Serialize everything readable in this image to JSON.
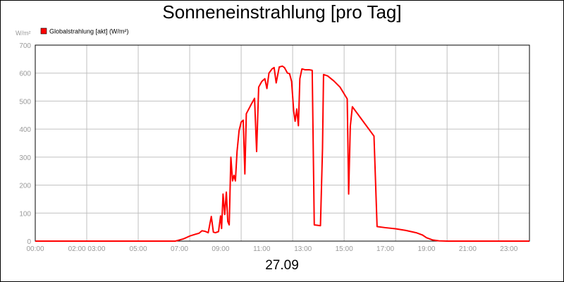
{
  "title": "Sonneneinstrahlung [pro Tag]",
  "date_label": "27.09",
  "colors": {
    "series": "#ff0000",
    "grid": "#c0c0c0",
    "tick_text": "#999999"
  },
  "chart_data": {
    "type": "line",
    "title": "Sonneneinstrahlung [pro Tag]",
    "xlabel": "",
    "ylabel": "W/m²",
    "ylim": [
      0,
      700
    ],
    "xlim": [
      0,
      24
    ],
    "grid": true,
    "legend_position": "top-left",
    "y_ticks": [
      0,
      100,
      200,
      300,
      400,
      500,
      600,
      700
    ],
    "x_ticks": [
      {
        "h": 0,
        "label": "00:00"
      },
      {
        "h": 2.5,
        "label": "02:00 03:00"
      },
      {
        "h": 5,
        "label": "05:00"
      },
      {
        "h": 7,
        "label": "07:00"
      },
      {
        "h": 9,
        "label": "09:00"
      },
      {
        "h": 11,
        "label": "11:00"
      },
      {
        "h": 13,
        "label": "13:00"
      },
      {
        "h": 15,
        "label": "15:00"
      },
      {
        "h": 17,
        "label": "17:00"
      },
      {
        "h": 19,
        "label": "19:00"
      },
      {
        "h": 21,
        "label": "21:00"
      },
      {
        "h": 23,
        "label": "23:00"
      }
    ],
    "series": [
      {
        "name": "Globalstrahlung [akt] (W/m²)",
        "color": "#ff0000",
        "points": [
          [
            0,
            0
          ],
          [
            6.8,
            0
          ],
          [
            7.2,
            8
          ],
          [
            7.5,
            18
          ],
          [
            7.8,
            25
          ],
          [
            7.95,
            28
          ],
          [
            8.1,
            37
          ],
          [
            8.25,
            35
          ],
          [
            8.4,
            30
          ],
          [
            8.55,
            88
          ],
          [
            8.65,
            32
          ],
          [
            8.75,
            30
          ],
          [
            8.9,
            34
          ],
          [
            9.0,
            90
          ],
          [
            9.05,
            45
          ],
          [
            9.12,
            168
          ],
          [
            9.2,
            95
          ],
          [
            9.28,
            175
          ],
          [
            9.35,
            70
          ],
          [
            9.42,
            58
          ],
          [
            9.5,
            300
          ],
          [
            9.58,
            215
          ],
          [
            9.65,
            235
          ],
          [
            9.72,
            215
          ],
          [
            9.8,
            320
          ],
          [
            9.9,
            395
          ],
          [
            10.0,
            425
          ],
          [
            10.1,
            432
          ],
          [
            10.18,
            240
          ],
          [
            10.25,
            455
          ],
          [
            10.5,
            490
          ],
          [
            10.65,
            510
          ],
          [
            10.75,
            320
          ],
          [
            10.85,
            550
          ],
          [
            11.0,
            570
          ],
          [
            11.15,
            580
          ],
          [
            11.25,
            545
          ],
          [
            11.35,
            600
          ],
          [
            11.5,
            615
          ],
          [
            11.6,
            620
          ],
          [
            11.7,
            565
          ],
          [
            11.85,
            622
          ],
          [
            12.0,
            625
          ],
          [
            12.1,
            620
          ],
          [
            12.25,
            600
          ],
          [
            12.35,
            598
          ],
          [
            12.45,
            570
          ],
          [
            12.55,
            465
          ],
          [
            12.62,
            428
          ],
          [
            12.7,
            472
          ],
          [
            12.78,
            412
          ],
          [
            12.85,
            580
          ],
          [
            12.95,
            615
          ],
          [
            13.1,
            612
          ],
          [
            13.3,
            612
          ],
          [
            13.45,
            610
          ],
          [
            13.55,
            58
          ],
          [
            13.85,
            55
          ],
          [
            13.95,
            330
          ],
          [
            14.0,
            595
          ],
          [
            14.2,
            590
          ],
          [
            14.5,
            572
          ],
          [
            14.8,
            550
          ],
          [
            15.05,
            520
          ],
          [
            15.15,
            508
          ],
          [
            15.22,
            168
          ],
          [
            15.3,
            410
          ],
          [
            15.4,
            480
          ],
          [
            15.6,
            460
          ],
          [
            15.9,
            430
          ],
          [
            16.2,
            400
          ],
          [
            16.45,
            375
          ],
          [
            16.6,
            52
          ],
          [
            17.0,
            48
          ],
          [
            17.5,
            44
          ],
          [
            18.0,
            38
          ],
          [
            18.5,
            30
          ],
          [
            18.8,
            22
          ],
          [
            19.0,
            12
          ],
          [
            19.3,
            4
          ],
          [
            19.6,
            1
          ],
          [
            20.0,
            0
          ],
          [
            24.0,
            0
          ]
        ]
      }
    ]
  }
}
